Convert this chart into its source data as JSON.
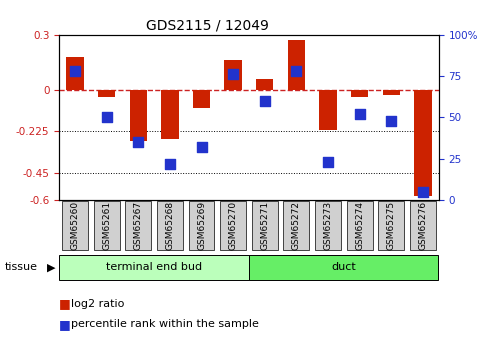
{
  "title": "GDS2115 / 12049",
  "samples": [
    "GSM65260",
    "GSM65261",
    "GSM65267",
    "GSM65268",
    "GSM65269",
    "GSM65270",
    "GSM65271",
    "GSM65272",
    "GSM65273",
    "GSM65274",
    "GSM65275",
    "GSM65276"
  ],
  "log2_ratio": [
    0.18,
    -0.04,
    -0.28,
    -0.27,
    -0.1,
    0.16,
    0.06,
    0.27,
    -0.22,
    -0.04,
    -0.03,
    -0.58
  ],
  "percentile_rank": [
    78,
    50,
    35,
    22,
    32,
    76,
    60,
    78,
    23,
    52,
    48,
    5
  ],
  "groups": [
    {
      "label": "terminal end bud",
      "start": 0,
      "end": 6,
      "color": "#bbffbb"
    },
    {
      "label": "duct",
      "start": 6,
      "end": 12,
      "color": "#66ee66"
    }
  ],
  "ylim_left": [
    -0.6,
    0.3
  ],
  "ylim_right": [
    0,
    100
  ],
  "yticks_left": [
    -0.6,
    -0.45,
    -0.225,
    0,
    0.3
  ],
  "ytick_labels_left": [
    "-0.6",
    "-0.45",
    "-0.225",
    "0",
    "0.3"
  ],
  "yticks_right": [
    0,
    25,
    50,
    75,
    100
  ],
  "ytick_labels_right": [
    "0",
    "25",
    "50",
    "75",
    "100%"
  ],
  "hlines": [
    -0.225,
    -0.45
  ],
  "bar_color": "#cc2200",
  "dot_color": "#2233cc",
  "bar_width": 0.55,
  "dot_size": 45,
  "tissue_label": "tissue",
  "legend_items": [
    {
      "label": "log2 ratio",
      "color": "#cc2200"
    },
    {
      "label": "percentile rank within the sample",
      "color": "#2233cc"
    }
  ],
  "background_color": "#ffffff",
  "dash_color": "#cc2222",
  "left_color": "#cc2222",
  "right_color": "#2233cc"
}
